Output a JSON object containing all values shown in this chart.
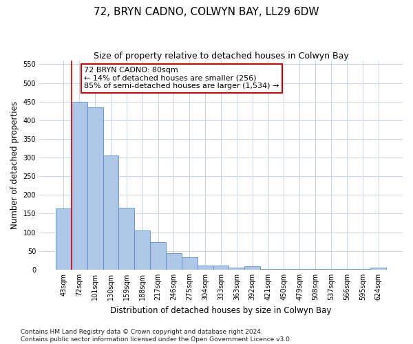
{
  "title": "72, BRYN CADNO, COLWYN BAY, LL29 6DW",
  "subtitle": "Size of property relative to detached houses in Colwyn Bay",
  "xlabel": "Distribution of detached houses by size in Colwyn Bay",
  "ylabel": "Number of detached properties",
  "categories": [
    "43sqm",
    "72sqm",
    "101sqm",
    "130sqm",
    "159sqm",
    "188sqm",
    "217sqm",
    "246sqm",
    "275sqm",
    "304sqm",
    "333sqm",
    "363sqm",
    "392sqm",
    "421sqm",
    "450sqm",
    "479sqm",
    "508sqm",
    "537sqm",
    "566sqm",
    "595sqm",
    "624sqm"
  ],
  "values": [
    163,
    450,
    435,
    305,
    165,
    105,
    73,
    44,
    32,
    10,
    10,
    5,
    9,
    2,
    2,
    1,
    1,
    1,
    1,
    1,
    5
  ],
  "bar_color": "#aec6e8",
  "bar_edge_color": "#5a8fc0",
  "marker_bar_index": 1,
  "marker_line_color": "#cc0000",
  "ylim": [
    0,
    560
  ],
  "yticks": [
    0,
    50,
    100,
    150,
    200,
    250,
    300,
    350,
    400,
    450,
    500,
    550
  ],
  "annotation_text": "72 BRYN CADNO: 80sqm\n← 14% of detached houses are smaller (256)\n85% of semi-detached houses are larger (1,534) →",
  "annotation_box_color": "#ffffff",
  "annotation_box_edge": "#cc0000",
  "footnote": "Contains HM Land Registry data © Crown copyright and database right 2024.\nContains public sector information licensed under the Open Government Licence v3.0.",
  "background_color": "#ffffff",
  "grid_color": "#c8d4e8",
  "title_fontsize": 11,
  "subtitle_fontsize": 9,
  "axis_label_fontsize": 8.5,
  "tick_fontsize": 7,
  "annotation_fontsize": 8,
  "footnote_fontsize": 6.5
}
